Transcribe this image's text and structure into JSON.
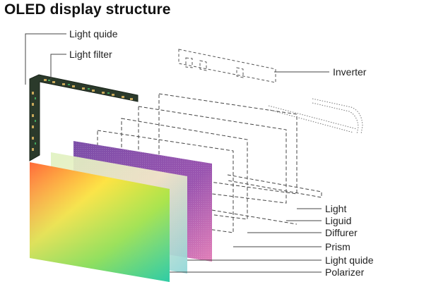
{
  "title": "OLED display structure",
  "labels": {
    "light_quide_top": "Light quide",
    "light_filter": "Light filter",
    "inverter": "Inverter",
    "light_right": "Light",
    "liguid": "Liguid",
    "diffurer": "Diffurer",
    "prism": "Prism",
    "light_quide_bottom": "Light quide",
    "polarizer": "Polarizer"
  },
  "colors": {
    "text": "#222222",
    "line": "#444444",
    "pcb": "#2b3a2b",
    "purple_panel": "#8e55a8",
    "cream_panel": "#f3e9c8"
  }
}
